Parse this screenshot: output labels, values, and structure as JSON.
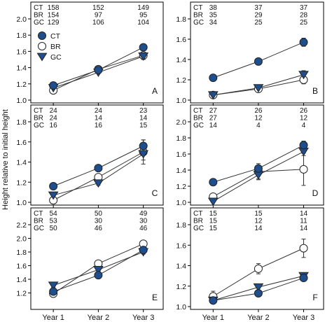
{
  "ylabel": "Height relative to initial height",
  "categories": [
    "Year 1",
    "Year 2",
    "Year 3"
  ],
  "legend_entries": [
    "CT",
    "BR",
    "GC"
  ],
  "series_style": {
    "CT": {
      "marker": "circle",
      "fill": "#1f4e8c"
    },
    "BR": {
      "marker": "circle",
      "fill": "#ffffff"
    },
    "GC": {
      "marker": "triangle-down",
      "fill": "#1f4e8c"
    }
  },
  "chart_data": [
    {
      "panel": "A",
      "type": "line",
      "categories": [
        "Year 1",
        "Year 2",
        "Year 3"
      ],
      "ylim": [
        1.0,
        2.0
      ],
      "yticks": [
        1.0,
        1.2,
        1.4,
        1.6,
        1.8,
        2.0
      ],
      "sample_sizes": {
        "CT": [
          "158",
          "152",
          "149"
        ],
        "BR": [
          "154",
          "97",
          "95"
        ],
        "GC": [
          "129",
          "106",
          "104"
        ]
      },
      "legend": "top-left",
      "series": [
        {
          "name": "CT",
          "values": [
            1.18,
            1.37,
            1.65
          ],
          "err": [
            0.01,
            0.01,
            0.02
          ]
        },
        {
          "name": "BR",
          "values": [
            1.12,
            1.38,
            1.55
          ],
          "err": [
            0.01,
            0.01,
            0.02
          ]
        },
        {
          "name": "GC",
          "values": [
            1.15,
            1.34,
            1.54
          ],
          "err": [
            0.01,
            0.01,
            0.04
          ]
        }
      ]
    },
    {
      "panel": "B",
      "type": "line",
      "categories": [
        "Year 1",
        "Year 2",
        "Year 3"
      ],
      "ylim": [
        1.0,
        1.8
      ],
      "yticks": [
        1.0,
        1.2,
        1.4,
        1.6,
        1.8
      ],
      "sample_sizes": {
        "CT": [
          "38",
          "37",
          "37"
        ],
        "BR": [
          "35",
          "29",
          "28"
        ],
        "GC": [
          "34",
          "25",
          "25"
        ]
      },
      "series": [
        {
          "name": "CT",
          "values": [
            1.22,
            1.38,
            1.57
          ],
          "err": [
            0.01,
            0.02,
            0.04
          ]
        },
        {
          "name": "BR",
          "values": [
            1.05,
            1.11,
            1.2
          ],
          "err": [
            0.01,
            0.02,
            0.04
          ]
        },
        {
          "name": "GC",
          "values": [
            1.05,
            1.12,
            1.25
          ],
          "err": [
            0.01,
            0.02,
            0.04
          ]
        }
      ]
    },
    {
      "panel": "C",
      "type": "line",
      "categories": [
        "Year 1",
        "Year 2",
        "Year 3"
      ],
      "ylim": [
        1.0,
        1.8
      ],
      "yticks": [
        1.0,
        1.2,
        1.4,
        1.6,
        1.8
      ],
      "sample_sizes": {
        "CT": [
          "24",
          "24",
          "23"
        ],
        "BR": [
          "24",
          "14",
          "14"
        ],
        "GC": [
          "16",
          "16",
          "15"
        ]
      },
      "series": [
        {
          "name": "CT",
          "values": [
            1.16,
            1.34,
            1.56
          ],
          "err": [
            0.01,
            0.02,
            0.06
          ]
        },
        {
          "name": "BR",
          "values": [
            1.02,
            1.25,
            1.5
          ],
          "err": [
            0.01,
            0.03,
            0.12
          ]
        },
        {
          "name": "GC",
          "values": [
            1.07,
            1.19,
            1.48
          ],
          "err": [
            0.01,
            0.02,
            0.06
          ]
        }
      ]
    },
    {
      "panel": "D",
      "type": "line",
      "categories": [
        "Year 1",
        "Year 2",
        "Year 3"
      ],
      "ylim": [
        1.0,
        2.0
      ],
      "yticks": [
        1.0,
        1.2,
        1.4,
        1.6,
        1.8,
        2.0
      ],
      "sample_sizes": {
        "CT": [
          "27",
          "26",
          "26"
        ],
        "BR": [
          "27",
          "12",
          "12"
        ],
        "GC": [
          "14",
          "4",
          "4"
        ]
      },
      "series": [
        {
          "name": "CT",
          "values": [
            1.25,
            1.42,
            1.71
          ],
          "err": [
            0.01,
            0.03,
            0.05
          ]
        },
        {
          "name": "BR",
          "values": [
            1.07,
            1.38,
            1.41
          ],
          "err": [
            0.02,
            0.1,
            0.2
          ]
        },
        {
          "name": "GC",
          "values": [
            1.01,
            1.34,
            1.63
          ],
          "err": [
            0.01,
            0.05,
            0.05
          ]
        }
      ]
    },
    {
      "panel": "E",
      "type": "line",
      "categories": [
        "Year 1",
        "Year 2",
        "Year 3"
      ],
      "ylim": [
        1.0,
        2.2
      ],
      "yticks": [
        1.2,
        1.4,
        1.6,
        1.8,
        2.0,
        2.2
      ],
      "sample_sizes": {
        "CT": [
          "54",
          "50",
          "49"
        ],
        "BR": [
          "53",
          "30",
          "30"
        ],
        "GC": [
          "50",
          "46",
          "46"
        ]
      },
      "series": [
        {
          "name": "CT",
          "values": [
            1.22,
            1.46,
            1.83
          ],
          "err": [
            0.01,
            0.02,
            0.03
          ]
        },
        {
          "name": "BR",
          "values": [
            1.19,
            1.63,
            1.92
          ],
          "err": [
            0.01,
            0.02,
            0.03
          ]
        },
        {
          "name": "GC",
          "values": [
            1.31,
            1.54,
            1.8
          ],
          "err": [
            0.03,
            0.02,
            0.03
          ]
        }
      ]
    },
    {
      "panel": "F",
      "type": "line",
      "categories": [
        "Year 1",
        "Year 2",
        "Year 3"
      ],
      "ylim": [
        1.0,
        1.8
      ],
      "yticks": [
        1.0,
        1.2,
        1.4,
        1.6,
        1.8
      ],
      "sample_sizes": {
        "CT": [
          "15",
          "15",
          "14"
        ],
        "BR": [
          "15",
          "12",
          "11"
        ],
        "GC": [
          "15",
          "14",
          "14"
        ]
      },
      "series": [
        {
          "name": "CT",
          "values": [
            1.06,
            1.13,
            1.28
          ],
          "err": [
            0.01,
            0.03,
            0.03
          ]
        },
        {
          "name": "BR",
          "values": [
            1.1,
            1.37,
            1.57
          ],
          "err": [
            0.05,
            0.05,
            0.09
          ]
        },
        {
          "name": "GC",
          "values": [
            1.06,
            1.19,
            1.3
          ],
          "err": [
            0.02,
            0.03,
            0.03
          ]
        }
      ]
    }
  ]
}
